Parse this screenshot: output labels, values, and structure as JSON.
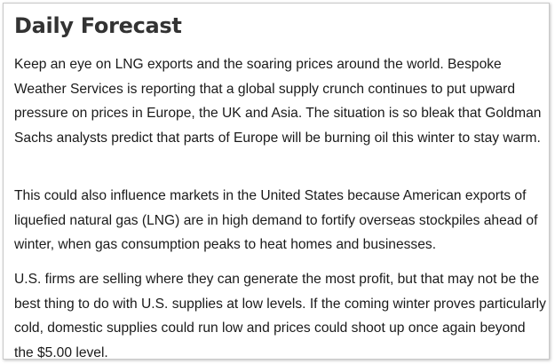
{
  "article": {
    "title": "Daily Forecast",
    "paragraphs": [
      "Keep an eye on LNG exports and the soaring prices around the world. Bespoke Weather Services is reporting that a global supply crunch continues to put upward pressure on prices in Europe, the UK and Asia. The situation is so bleak that Goldman Sachs analysts predict that parts of Europe will be burning oil this winter to stay warm.",
      "This could also influence markets in the United States because American exports of liquefied natural gas (LNG) are in high demand to fortify overseas stockpiles ahead of winter, when gas consumption peaks to heat homes and businesses.",
      "U.S. firms are selling where they can generate the most profit, but that may not be the best thing to do with U.S. supplies at low levels. If the coming winter proves particularly cold, domestic supplies could run low and prices could shoot up once again beyond the $5.00 level."
    ]
  }
}
